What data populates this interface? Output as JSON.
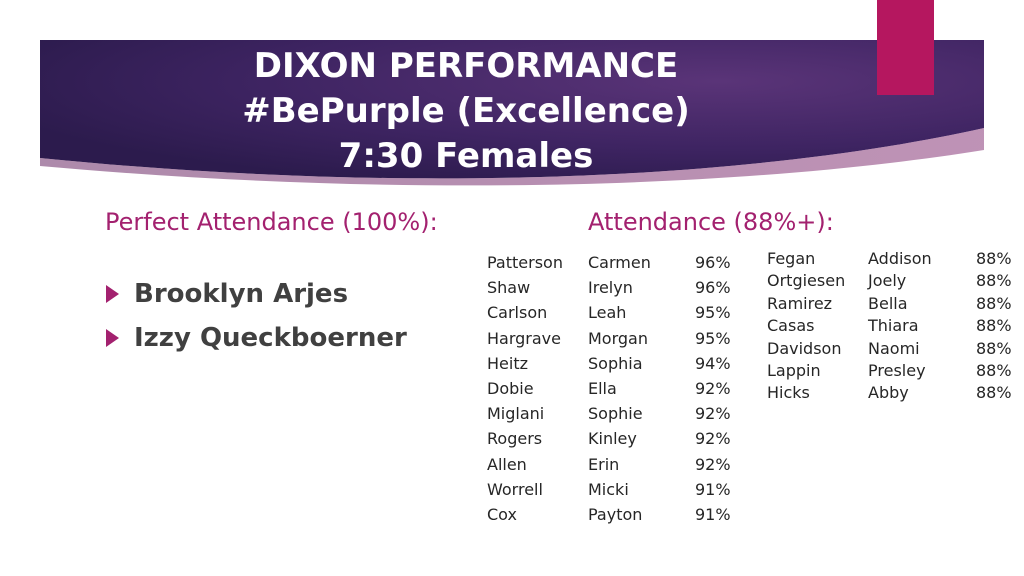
{
  "colors": {
    "banner_start": "#2c1b4d",
    "banner_mid": "#4a2a6a",
    "banner_end": "#7a2a6e",
    "accent": "#b5175f",
    "heading": "#a3216f"
  },
  "title": {
    "line1": "DIXON PERFORMANCE",
    "line2": "#BePurple (Excellence)",
    "line3": "7:30 Females"
  },
  "perfect": {
    "heading": "Perfect Attendance (100%):",
    "names": [
      "Brooklyn Arjes",
      "Izzy Queckboerner"
    ]
  },
  "attendance": {
    "heading": "Attendance (88%+):",
    "table_a": [
      [
        "Patterson",
        "Carmen",
        "96%"
      ],
      [
        "Shaw",
        "Irelyn",
        "96%"
      ],
      [
        "Carlson",
        "Leah",
        "95%"
      ],
      [
        "Hargrave",
        "Morgan",
        "95%"
      ],
      [
        "Heitz",
        "Sophia",
        "94%"
      ],
      [
        "Dobie",
        "Ella",
        "92%"
      ],
      [
        "Miglani",
        "Sophie",
        "92%"
      ],
      [
        "Rogers",
        "Kinley",
        "92%"
      ],
      [
        "Allen",
        "Erin",
        "92%"
      ],
      [
        "Worrell",
        "Micki",
        "91%"
      ],
      [
        "Cox",
        "Payton",
        "91%"
      ]
    ],
    "table_b": [
      [
        "Fegan",
        "Addison",
        "88%"
      ],
      [
        "Ortgiesen",
        "Joely",
        "88%"
      ],
      [
        "Ramirez",
        "Bella",
        "88%"
      ],
      [
        "Casas",
        "Thiara",
        "88%"
      ],
      [
        "Davidson",
        "Naomi",
        "88%"
      ],
      [
        "Lappin",
        "Presley",
        "88%"
      ],
      [
        "Hicks",
        "Abby",
        "88%"
      ]
    ]
  }
}
